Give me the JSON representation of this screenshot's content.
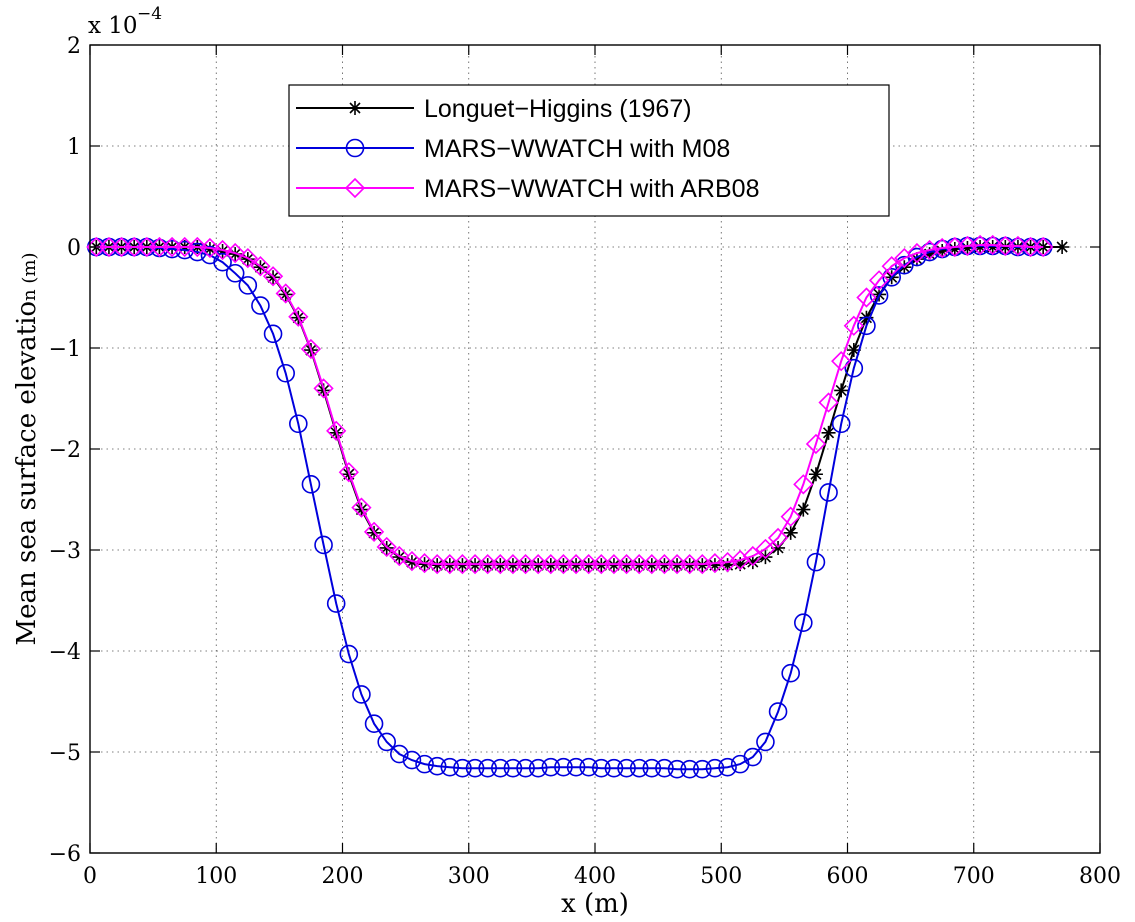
{
  "chart_data": {
    "type": "line",
    "xlabel": "x (m)",
    "ylabel_main": "Mean sea surface elevatio",
    "ylabel_small": "n (m)",
    "multiplier_base": "x 10",
    "multiplier_exp": "−4",
    "xlim": [
      0,
      800
    ],
    "ylim": [
      -6,
      2
    ],
    "xticks": [
      0,
      100,
      200,
      300,
      400,
      500,
      600,
      700,
      800
    ],
    "yticks": [
      -6,
      -5,
      -4,
      -3,
      -2,
      -1,
      0,
      1,
      2
    ],
    "xtick_labels": [
      "0",
      "100",
      "200",
      "300",
      "400",
      "500",
      "600",
      "700",
      "800"
    ],
    "ytick_labels": [
      "−6",
      "−5",
      "−4",
      "−3",
      "−2",
      "−1",
      "0",
      "1",
      "2"
    ],
    "grid": true,
    "legend_position": "top-center",
    "series": [
      {
        "name": "Longuet−Higgins (1967)",
        "color": "#000000",
        "marker": "asterisk",
        "x": [
          5,
          15,
          25,
          35,
          45,
          55,
          65,
          75,
          85,
          95,
          105,
          115,
          125,
          135,
          145,
          155,
          165,
          175,
          185,
          195,
          205,
          215,
          225,
          235,
          245,
          255,
          265,
          275,
          285,
          295,
          305,
          315,
          325,
          335,
          345,
          355,
          365,
          375,
          385,
          395,
          405,
          415,
          425,
          435,
          445,
          455,
          465,
          475,
          485,
          495,
          505,
          515,
          525,
          535,
          545,
          555,
          565,
          575,
          585,
          595,
          605,
          615,
          625,
          635,
          645,
          655,
          665,
          675,
          685,
          695,
          705,
          715,
          725,
          735,
          745,
          755,
          770
        ],
        "values": [
          0,
          0,
          0,
          0,
          0,
          0,
          0,
          0,
          0,
          -0.02,
          -0.04,
          -0.07,
          -0.12,
          -0.2,
          -0.3,
          -0.47,
          -0.7,
          -1.02,
          -1.42,
          -1.84,
          -2.25,
          -2.6,
          -2.83,
          -2.98,
          -3.07,
          -3.12,
          -3.14,
          -3.15,
          -3.15,
          -3.15,
          -3.15,
          -3.15,
          -3.15,
          -3.15,
          -3.15,
          -3.15,
          -3.15,
          -3.15,
          -3.15,
          -3.15,
          -3.15,
          -3.15,
          -3.15,
          -3.15,
          -3.15,
          -3.15,
          -3.15,
          -3.15,
          -3.15,
          -3.15,
          -3.15,
          -3.14,
          -3.12,
          -3.07,
          -2.98,
          -2.83,
          -2.6,
          -2.25,
          -1.84,
          -1.42,
          -1.02,
          -0.7,
          -0.47,
          -0.3,
          -0.2,
          -0.12,
          -0.07,
          -0.04,
          -0.02,
          -0.01,
          0,
          0,
          0,
          0,
          0,
          0,
          0
        ]
      },
      {
        "name": "MARS−WWATCH with M08",
        "color": "#0000dd",
        "marker": "circle",
        "x": [
          5,
          15,
          25,
          35,
          45,
          55,
          65,
          75,
          85,
          95,
          105,
          115,
          125,
          135,
          145,
          155,
          165,
          175,
          185,
          195,
          205,
          215,
          225,
          235,
          245,
          255,
          265,
          275,
          285,
          295,
          305,
          315,
          325,
          335,
          345,
          355,
          365,
          375,
          385,
          395,
          405,
          415,
          425,
          435,
          445,
          455,
          465,
          475,
          485,
          495,
          505,
          515,
          525,
          535,
          545,
          555,
          565,
          575,
          585,
          595,
          605,
          615,
          625,
          635,
          645,
          655,
          665,
          675,
          685,
          695,
          705,
          715,
          725,
          735,
          745,
          755
        ],
        "values": [
          0,
          0,
          0,
          0,
          0,
          -0.01,
          -0.02,
          -0.03,
          -0.05,
          -0.08,
          -0.15,
          -0.26,
          -0.38,
          -0.58,
          -0.86,
          -1.25,
          -1.75,
          -2.35,
          -2.95,
          -3.53,
          -4.03,
          -4.43,
          -4.72,
          -4.9,
          -5.02,
          -5.08,
          -5.12,
          -5.14,
          -5.15,
          -5.16,
          -5.16,
          -5.16,
          -5.16,
          -5.16,
          -5.16,
          -5.16,
          -5.15,
          -5.15,
          -5.15,
          -5.15,
          -5.16,
          -5.16,
          -5.16,
          -5.16,
          -5.16,
          -5.16,
          -5.17,
          -5.17,
          -5.17,
          -5.16,
          -5.15,
          -5.12,
          -5.05,
          -4.9,
          -4.6,
          -4.22,
          -3.72,
          -3.12,
          -2.43,
          -1.75,
          -1.2,
          -0.78,
          -0.48,
          -0.3,
          -0.18,
          -0.1,
          -0.05,
          -0.02,
          0,
          0.01,
          0.01,
          0.01,
          0.01,
          0,
          0,
          0
        ]
      },
      {
        "name": "MARS−WWATCH with ARB08",
        "color": "#ff00ff",
        "marker": "diamond",
        "x": [
          5,
          15,
          25,
          35,
          45,
          55,
          65,
          75,
          85,
          95,
          105,
          115,
          125,
          135,
          145,
          155,
          165,
          175,
          185,
          195,
          205,
          215,
          225,
          235,
          245,
          255,
          265,
          275,
          285,
          295,
          305,
          315,
          325,
          335,
          345,
          355,
          365,
          375,
          385,
          395,
          405,
          415,
          425,
          435,
          445,
          455,
          465,
          475,
          485,
          495,
          505,
          515,
          525,
          535,
          545,
          555,
          565,
          575,
          585,
          595,
          605,
          615,
          625,
          635,
          645,
          655,
          665,
          675,
          685,
          695,
          705,
          715,
          725,
          735,
          745,
          755
        ],
        "values": [
          0,
          0,
          0,
          0,
          0,
          0,
          0,
          0,
          0,
          -0.01,
          -0.03,
          -0.06,
          -0.11,
          -0.19,
          -0.29,
          -0.46,
          -0.69,
          -1.01,
          -1.4,
          -1.82,
          -2.23,
          -2.58,
          -2.82,
          -2.97,
          -3.06,
          -3.11,
          -3.13,
          -3.14,
          -3.14,
          -3.14,
          -3.14,
          -3.14,
          -3.14,
          -3.14,
          -3.14,
          -3.14,
          -3.14,
          -3.14,
          -3.14,
          -3.14,
          -3.14,
          -3.14,
          -3.14,
          -3.14,
          -3.14,
          -3.14,
          -3.14,
          -3.14,
          -3.14,
          -3.13,
          -3.12,
          -3.1,
          -3.06,
          -2.99,
          -2.88,
          -2.67,
          -2.35,
          -1.95,
          -1.54,
          -1.13,
          -0.78,
          -0.5,
          -0.33,
          -0.19,
          -0.11,
          -0.06,
          -0.03,
          -0.01,
          0,
          0.01,
          0.02,
          0.02,
          0.01,
          0.01,
          0,
          0
        ]
      }
    ]
  }
}
